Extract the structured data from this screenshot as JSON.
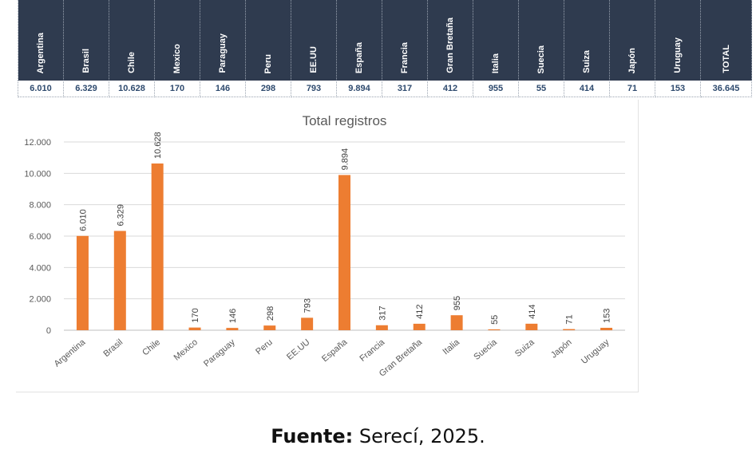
{
  "table": {
    "headers": [
      "Argentina",
      "Brasil",
      "Chile",
      "Mexico",
      "Paraguay",
      "Peru",
      "EE.UU",
      "España",
      "Francia",
      "Gran Bretaña",
      "Italia",
      "Suecia",
      "Suiza",
      "Japón",
      "Uruguay",
      "TOTAL"
    ],
    "values": [
      "6.010",
      "6.329",
      "10.628",
      "170",
      "146",
      "298",
      "793",
      "9.894",
      "317",
      "412",
      "955",
      "55",
      "414",
      "71",
      "153",
      "36.645"
    ]
  },
  "chart_data": {
    "type": "bar",
    "title": "Total registros",
    "categories": [
      "Argentina",
      "Brasil",
      "Chile",
      "Mexico",
      "Paraguay",
      "Peru",
      "EE.UU",
      "España",
      "Francia",
      "Gran Bretaña",
      "Italia",
      "Suecia",
      "Suiza",
      "Japón",
      "Uruguay"
    ],
    "values": [
      6010,
      6329,
      10628,
      170,
      146,
      298,
      793,
      9894,
      317,
      412,
      955,
      55,
      414,
      71,
      153
    ],
    "data_labels": [
      "6.010",
      "6.329",
      "10.628",
      "170",
      "146",
      "298",
      "793",
      "9.894",
      "317",
      "412",
      "955",
      "55",
      "414",
      "71",
      "153"
    ],
    "ylim": [
      0,
      12000
    ],
    "yticks": [
      0,
      2000,
      4000,
      6000,
      8000,
      10000,
      12000
    ],
    "ytick_labels": [
      "0",
      "2.000",
      "4.000",
      "6.000",
      "8.000",
      "10.000",
      "12.000"
    ],
    "grid": true,
    "bar_color": "#ed7d31"
  },
  "source": {
    "label": "Fuente:",
    "text": " Serecí, 2025."
  }
}
